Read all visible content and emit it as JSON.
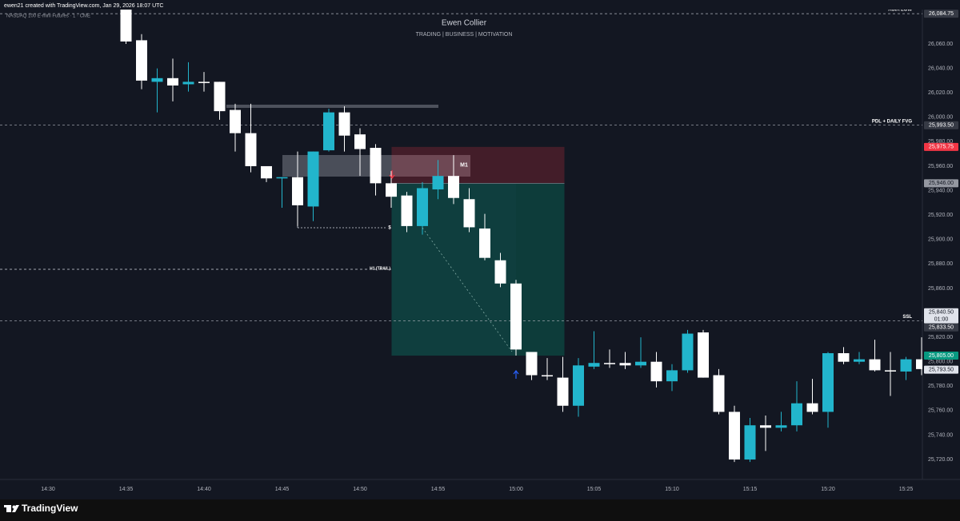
{
  "header": {
    "credit": "ewen21 created with TradingView.com, Jan 29, 2026 18:07 UTC"
  },
  "footer": {
    "brand": "TradingView"
  },
  "chart_data": {
    "type": "candlestick",
    "symbol": "NASDAQ 100 E-mini Futures · 1 · CME",
    "title": "Ewen Collier",
    "subtitle": "TRADING | BUSINESS | MOTIVATION",
    "up_color": "#22b5cc",
    "down_color": "#ffffff",
    "grid": false,
    "categories": [
      "14:30",
      null,
      null,
      null,
      null,
      "14:35",
      null,
      null,
      null,
      null,
      "14:40",
      null,
      null,
      null,
      null,
      "14:45",
      null,
      null,
      null,
      null,
      "14:50",
      null,
      null,
      null,
      null,
      "14:55",
      null,
      null,
      null,
      null,
      "15:00",
      null,
      null,
      null,
      null,
      "15:05",
      null,
      null,
      null,
      null,
      "15:10",
      null,
      null,
      null,
      null,
      "15:15",
      null,
      null,
      null,
      null,
      "15:20",
      null,
      null,
      null,
      null,
      "15:25",
      null
    ],
    "open": [
      null,
      null,
      null,
      null,
      null,
      26090,
      26063,
      26029,
      26032,
      26027,
      26029,
      26029,
      26006,
      25987,
      25960,
      25950,
      25951,
      25927,
      25973,
      26004,
      25986,
      25975,
      25946,
      25936,
      25911,
      25941,
      25952,
      25933,
      25909,
      25883,
      25864,
      25808,
      25789,
      25787,
      25764,
      25796,
      25799,
      25799,
      25797,
      25800,
      25784,
      25793,
      25824,
      25789,
      25759,
      25720,
      25748,
      25746,
      25748,
      25766,
      25759,
      25807,
      25800,
      25802,
      25793,
      25792,
      25802
    ],
    "high": [
      null,
      null,
      null,
      null,
      null,
      26095,
      26068,
      26040,
      26048,
      26045,
      26037,
      26029,
      26011,
      26011,
      25960,
      25951,
      25972,
      25972,
      26007,
      26009,
      25991,
      25978,
      25956,
      25939,
      25947,
      25965,
      25969,
      25942,
      25921,
      25889,
      25867,
      25808,
      25803,
      25804,
      25803,
      25825,
      25810,
      25808,
      25820,
      25808,
      25798,
      25826,
      25826,
      25794,
      25764,
      25754,
      25756,
      25759,
      25784,
      25786,
      25808,
      25812,
      25808,
      25818,
      25808,
      25804,
      25820
    ],
    "low": [
      null,
      null,
      null,
      null,
      null,
      26060,
      26023,
      26004,
      26013,
      26021,
      26021,
      25998,
      25972,
      25955,
      25947,
      25926,
      25911,
      25915,
      25972,
      25972,
      25952,
      25936,
      25926,
      25906,
      25904,
      25933,
      25929,
      25906,
      25883,
      25861,
      25805,
      25785,
      25785,
      25759,
      25755,
      25794,
      25795,
      25794,
      25795,
      25779,
      25776,
      25791,
      25787,
      25757,
      25718,
      25718,
      25727,
      25743,
      25743,
      25757,
      25746,
      25798,
      25798,
      25792,
      25772,
      25785,
      25789
    ],
    "close": [
      null,
      null,
      null,
      null,
      null,
      26062,
      26030,
      26032,
      26026,
      26029,
      26028,
      26005,
      25987,
      25960,
      25950,
      25951,
      25928,
      25972,
      26004,
      25985,
      25974,
      25946,
      25935,
      25911,
      25942,
      25952,
      25934,
      25910,
      25885,
      25864,
      25810,
      25789,
      25788,
      25764,
      25797,
      25799,
      25798,
      25797,
      25800,
      25784,
      25793,
      25823,
      25787,
      25759,
      25720,
      25748,
      25746,
      25748,
      25766,
      25759,
      25807,
      25800,
      25802,
      25793,
      25792,
      25802,
      25794
    ],
    "ylim": [
      25703.7,
      26088.1
    ],
    "yticks": [
      {
        "value": 25720,
        "label": "25,720.00"
      },
      {
        "value": 25740,
        "label": "25,740.00"
      },
      {
        "value": 25760,
        "label": "25,760.00"
      },
      {
        "value": 25780,
        "label": "25,780.00"
      },
      {
        "value": 25800,
        "label": "25,800.00"
      },
      {
        "value": 25820,
        "label": "25,820.00"
      },
      {
        "value": 25840,
        "label": "25,840.00"
      },
      {
        "value": 25860,
        "label": "25,860.00"
      },
      {
        "value": 25880,
        "label": "25,880.00"
      },
      {
        "value": 25900,
        "label": "25,900.00"
      },
      {
        "value": 25920,
        "label": "25,920.00"
      },
      {
        "value": 25940,
        "label": "25,940.00"
      },
      {
        "value": 25960,
        "label": "25,960.00"
      },
      {
        "value": 25980,
        "label": "25,980.00"
      },
      {
        "value": 26000,
        "label": "26,000.00"
      },
      {
        "value": 26020,
        "label": "26,020.00"
      },
      {
        "value": 26040,
        "label": "26,040.00"
      },
      {
        "value": 26060,
        "label": "26,060.00"
      }
    ],
    "levels": [
      {
        "name": "ASIA LOW",
        "price": {
          "value": 26084.75,
          "label": "26,084.75"
        }
      },
      {
        "name": "PDL + DAILY FVG",
        "price": {
          "value": 25993.5,
          "label": "25,993.50"
        }
      },
      {
        "name": "SSL",
        "price": {
          "value": 25833.5,
          "label": "25,833.50"
        }
      }
    ],
    "position": {
      "label": "M1",
      "stop": {
        "value": 25975.75,
        "label": "25,975.75"
      },
      "entry": {
        "value": 25946,
        "label": "25,946.00"
      },
      "target": {
        "value": 25805,
        "label": "25,805.00"
      }
    },
    "price_tags": [
      {
        "price": {
          "value": 25840.5,
          "label": "25,840.50"
        },
        "countdown": "01:00"
      },
      {
        "price": {
          "value": 25793.5,
          "label": "25,793.50"
        }
      }
    ],
    "annotations": {
      "trail": "H1 (TRAIL)",
      "sweep": "$"
    }
  }
}
